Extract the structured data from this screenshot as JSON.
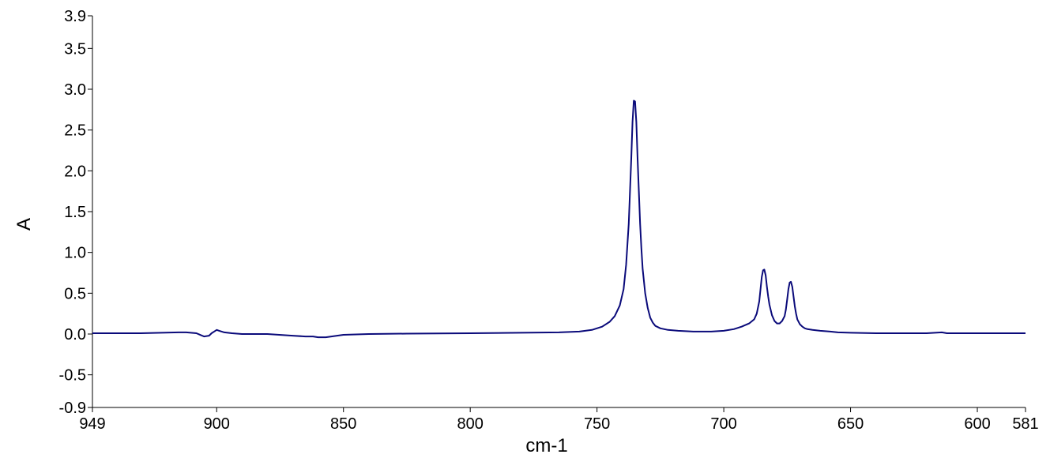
{
  "chart_data": {
    "type": "line",
    "title": "",
    "xlabel": "cm-1",
    "ylabel": "A",
    "xlim": [
      949,
      581
    ],
    "ylim": [
      -0.9,
      3.9
    ],
    "x_reversed": true,
    "grid": false,
    "legend": "none",
    "line_color": "#0a0a7a",
    "x_ticks": [
      {
        "value": 949,
        "label": "949"
      },
      {
        "value": 900,
        "label": "900"
      },
      {
        "value": 850,
        "label": "850"
      },
      {
        "value": 800,
        "label": "800"
      },
      {
        "value": 750,
        "label": "750"
      },
      {
        "value": 700,
        "label": "700"
      },
      {
        "value": 650,
        "label": "650"
      },
      {
        "value": 600,
        "label": "600"
      },
      {
        "value": 581,
        "label": "581"
      }
    ],
    "y_ticks": [
      {
        "value": 3.9,
        "label": "3.9"
      },
      {
        "value": 3.5,
        "label": "3.5"
      },
      {
        "value": 3.0,
        "label": "3.0"
      },
      {
        "value": 2.5,
        "label": "2.5"
      },
      {
        "value": 2.0,
        "label": "2.0"
      },
      {
        "value": 1.5,
        "label": "1.5"
      },
      {
        "value": 1.0,
        "label": "1.0"
      },
      {
        "value": 0.5,
        "label": "0.5"
      },
      {
        "value": 0.0,
        "label": "0.0"
      },
      {
        "value": -0.5,
        "label": "-0.5"
      },
      {
        "value": -0.9,
        "label": "-0.9"
      }
    ],
    "series": [
      {
        "x": [
          949,
          930,
          915,
          912,
          908,
          905,
          903,
          902,
          901,
          900,
          899,
          897,
          894,
          890,
          880,
          870,
          865,
          862,
          860,
          857,
          850,
          840,
          825,
          800,
          780,
          765,
          757,
          752,
          748,
          745,
          743,
          741,
          739.5,
          738.5,
          737.5,
          737,
          736.5,
          736,
          735.5,
          735,
          734.5,
          734,
          733.5,
          733,
          732.5,
          732,
          731,
          730,
          729,
          728,
          727,
          725,
          722,
          718,
          712,
          705,
          700,
          696,
          693,
          690,
          688,
          687,
          686,
          685.5,
          685,
          684.5,
          684,
          683.5,
          683,
          682.5,
          682,
          681,
          680,
          679,
          678,
          677,
          676,
          675.5,
          675,
          674.5,
          674,
          673.5,
          673,
          672.5,
          672,
          671.5,
          671,
          670,
          669,
          668,
          667,
          665,
          662,
          658,
          655,
          650,
          640,
          620,
          614,
          612,
          609,
          581
        ],
        "y": [
          0.01,
          0.01,
          0.02,
          0.02,
          0.01,
          -0.03,
          -0.02,
          0.01,
          0.03,
          0.05,
          0.04,
          0.02,
          0.01,
          0.0,
          0.0,
          -0.02,
          -0.03,
          -0.03,
          -0.04,
          -0.04,
          -0.01,
          0.0,
          0.005,
          0.01,
          0.015,
          0.02,
          0.03,
          0.05,
          0.09,
          0.15,
          0.22,
          0.35,
          0.55,
          0.85,
          1.35,
          1.75,
          2.15,
          2.6,
          2.86,
          2.85,
          2.6,
          2.15,
          1.75,
          1.35,
          1.05,
          0.8,
          0.5,
          0.32,
          0.2,
          0.14,
          0.1,
          0.07,
          0.05,
          0.04,
          0.03,
          0.03,
          0.04,
          0.06,
          0.09,
          0.13,
          0.18,
          0.25,
          0.4,
          0.55,
          0.7,
          0.78,
          0.79,
          0.72,
          0.58,
          0.46,
          0.36,
          0.23,
          0.16,
          0.13,
          0.13,
          0.16,
          0.22,
          0.3,
          0.42,
          0.55,
          0.63,
          0.64,
          0.58,
          0.46,
          0.34,
          0.25,
          0.18,
          0.12,
          0.09,
          0.07,
          0.06,
          0.05,
          0.04,
          0.03,
          0.02,
          0.015,
          0.01,
          0.01,
          0.02,
          0.01,
          0.01,
          0.01
        ]
      }
    ]
  }
}
